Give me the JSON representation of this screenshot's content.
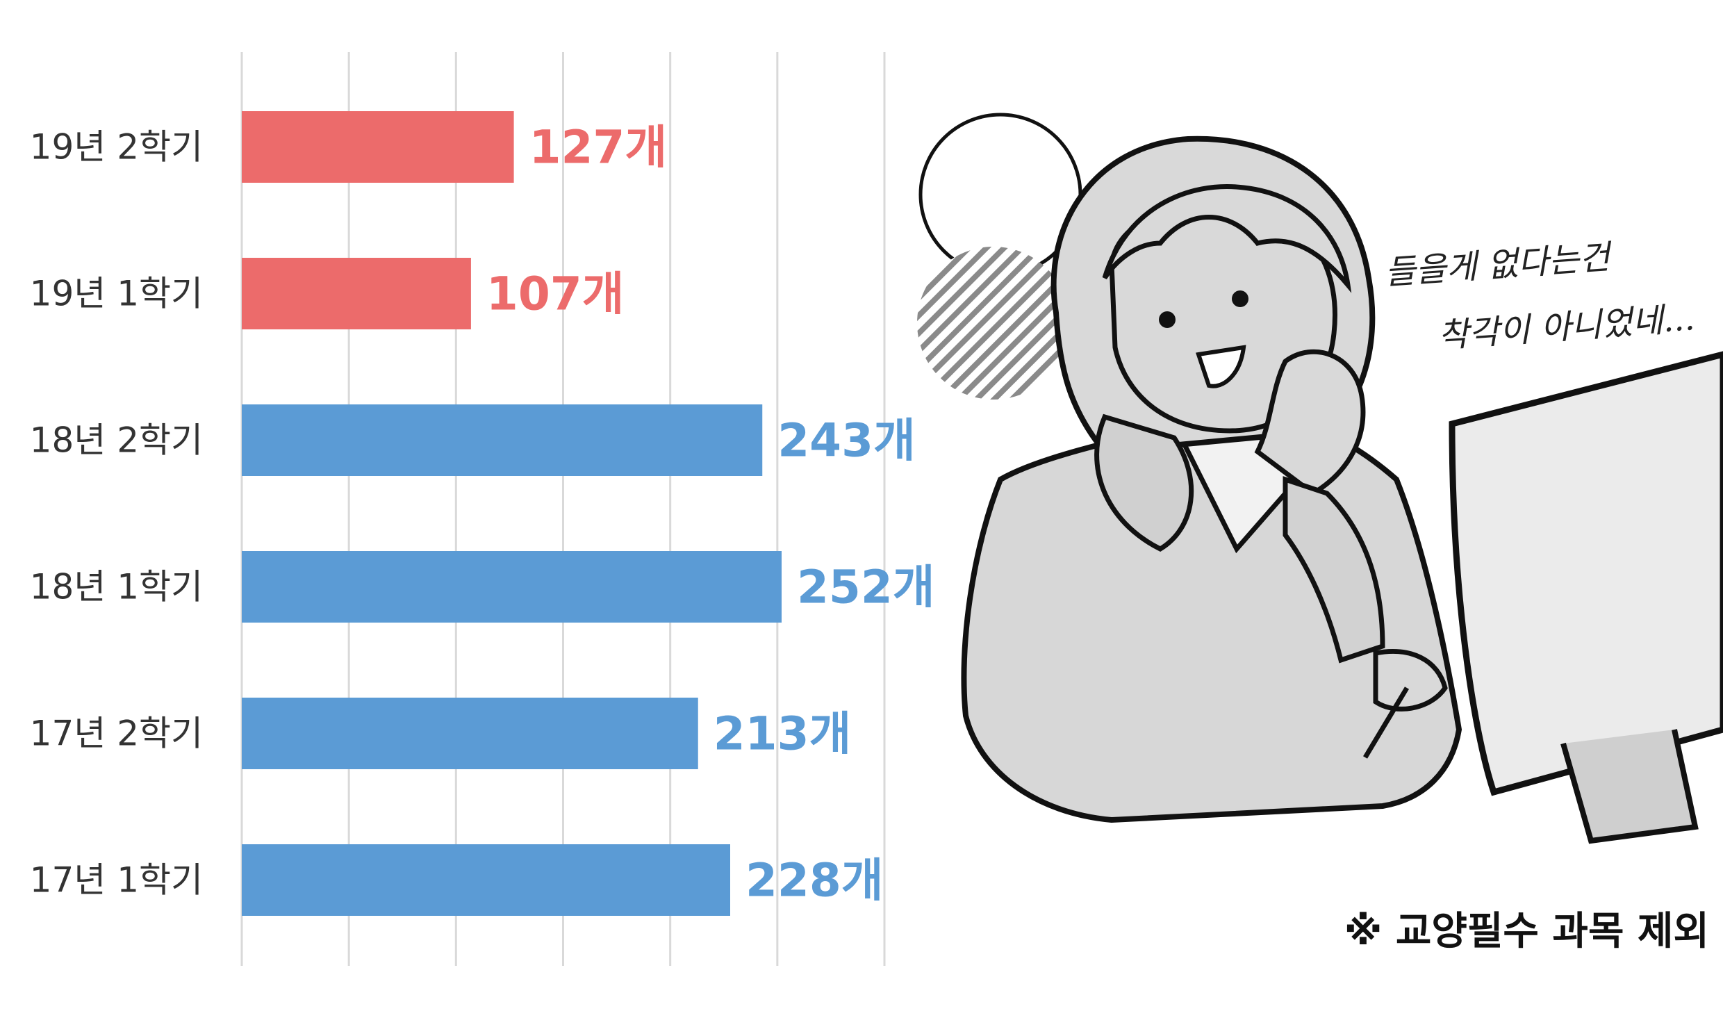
{
  "chart_data": {
    "type": "bar",
    "orientation": "horizontal",
    "categories": [
      "19년 2학기",
      "19년 1학기",
      "18년 2학기",
      "18년 1학기",
      "17년 2학기",
      "17년 1학기"
    ],
    "values": [
      127,
      107,
      243,
      252,
      213,
      228
    ],
    "value_labels": [
      "127개",
      "107개",
      "243개",
      "252개",
      "213개",
      "228개"
    ],
    "series_colors": [
      "#ec6b6b",
      "#ec6b6b",
      "#5b9bd5",
      "#5b9bd5",
      "#5b9bd5",
      "#5b9bd5"
    ],
    "xlim": [
      0,
      300
    ],
    "grid": true
  },
  "illustration": {
    "speech_lines": [
      "들을게 없다는건",
      "착각이 아니었네..."
    ]
  },
  "footnote": "※ 교양필수 과목 제외"
}
